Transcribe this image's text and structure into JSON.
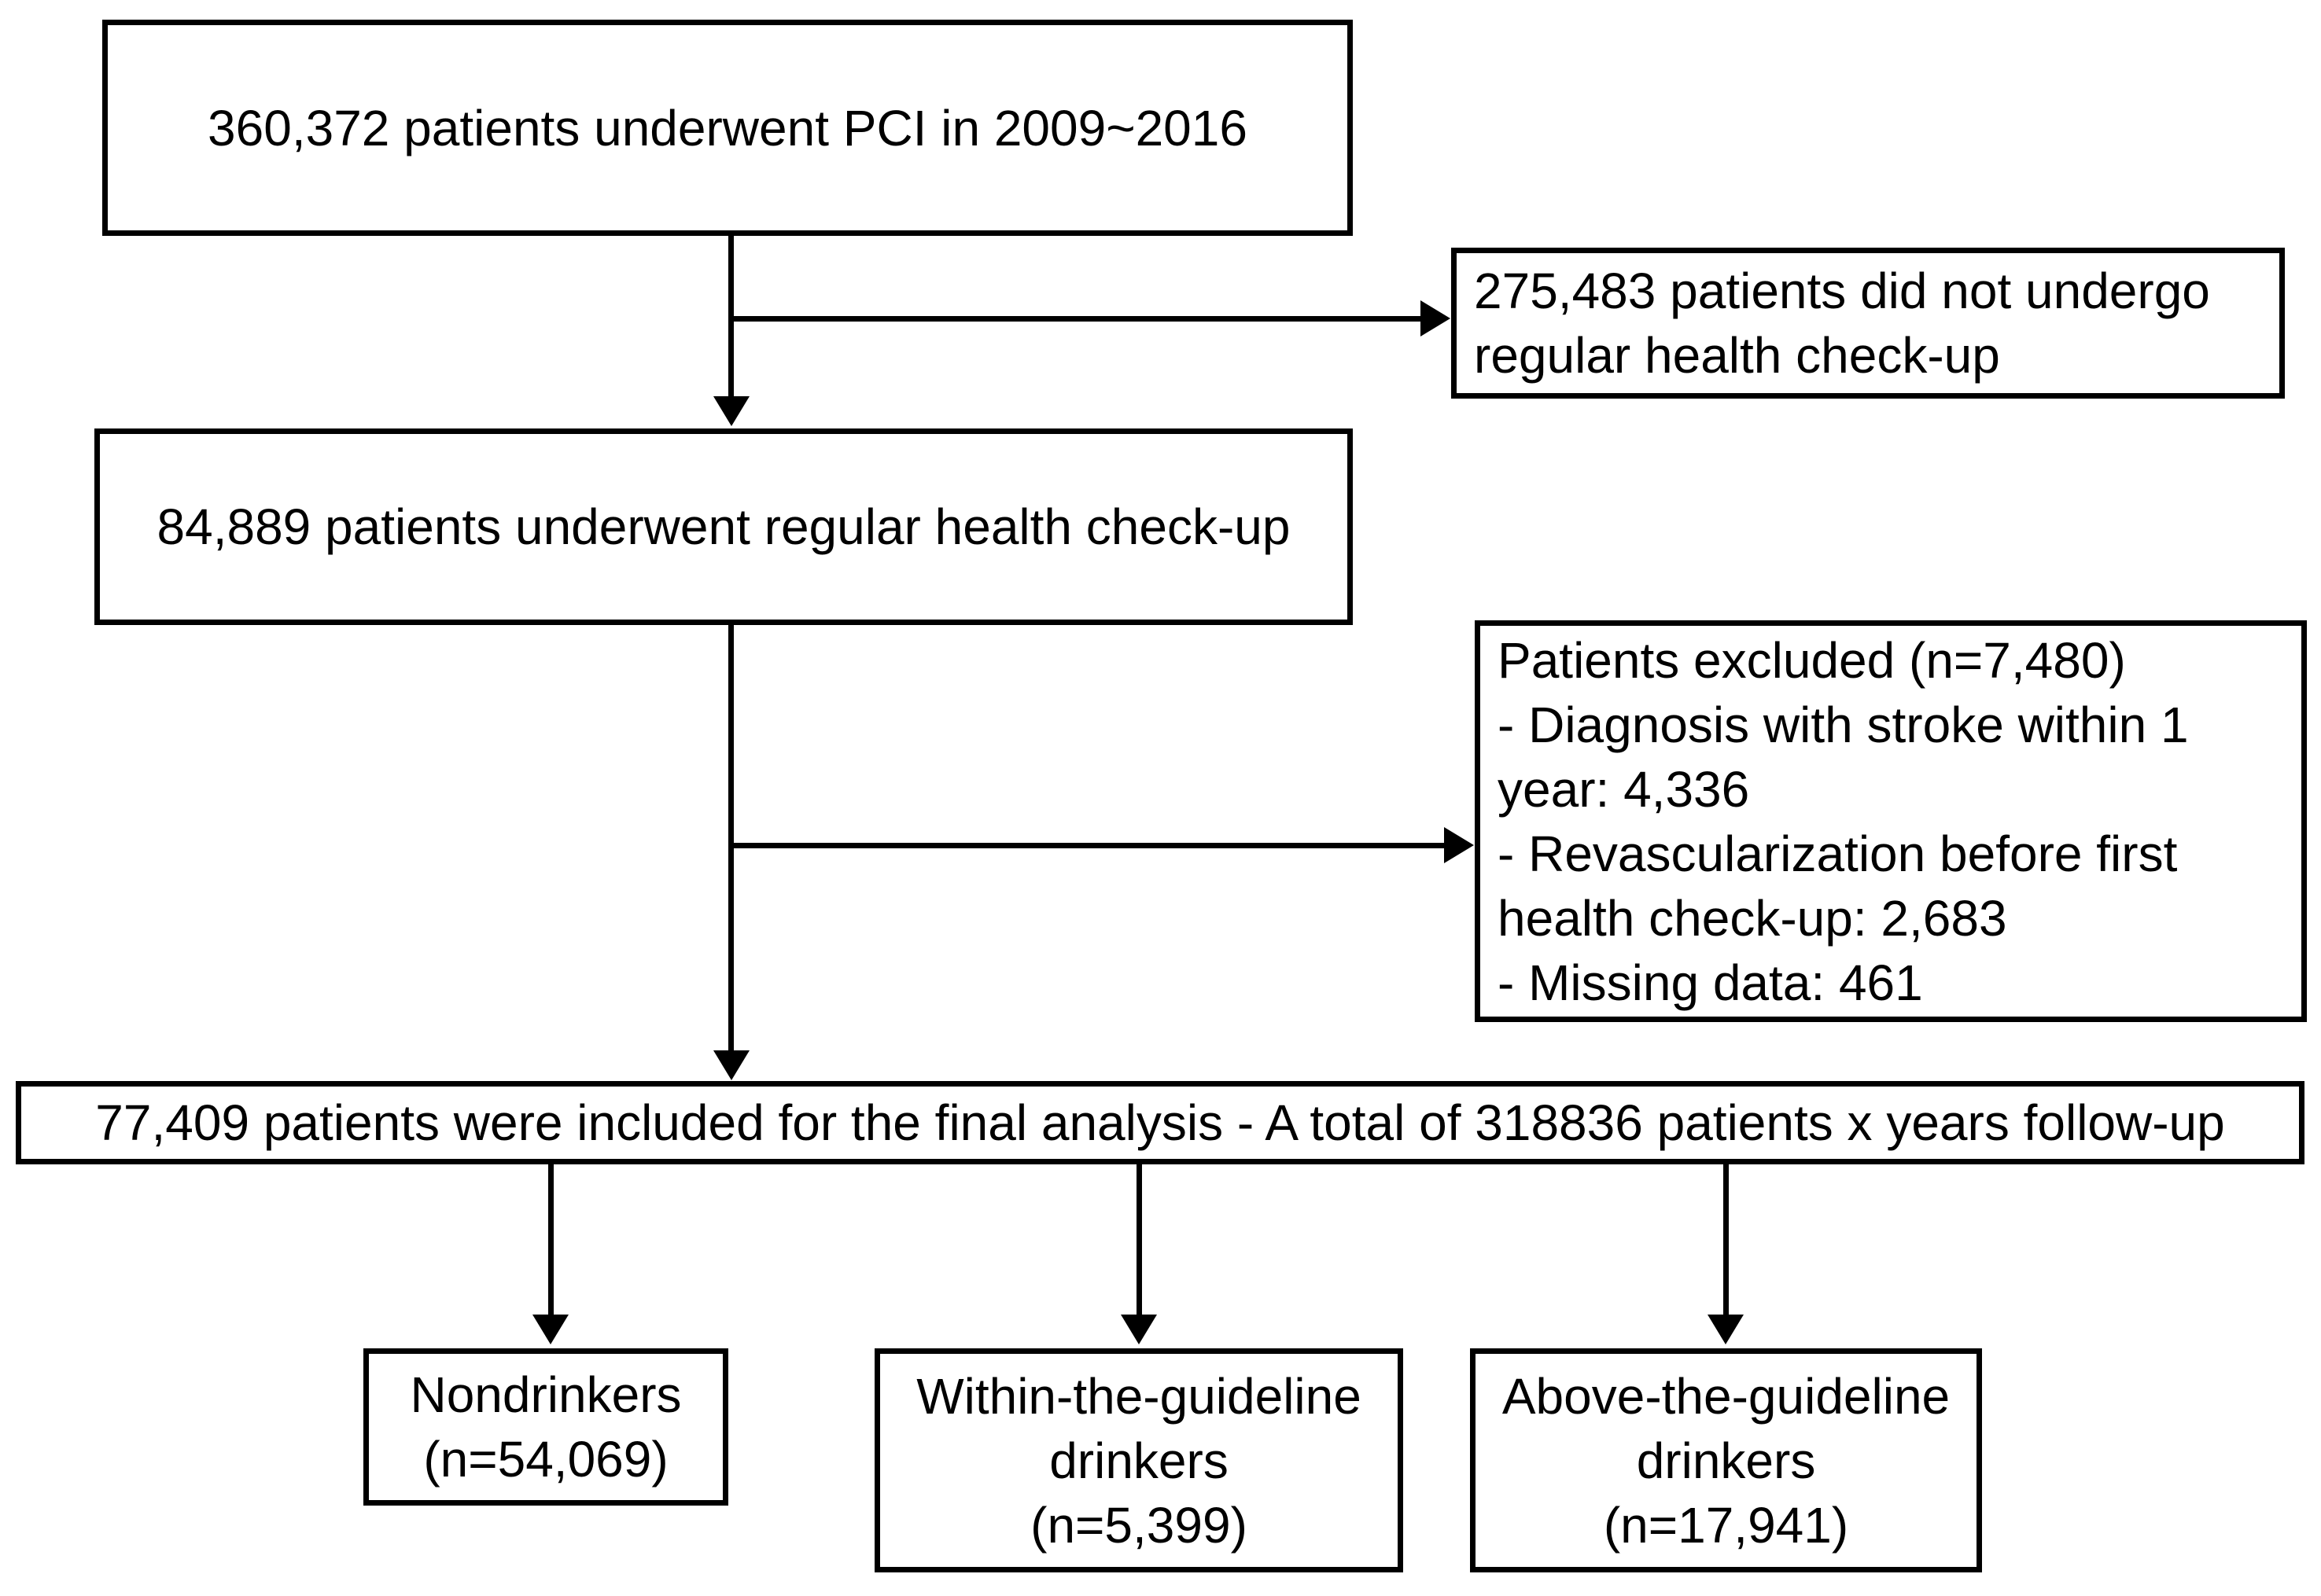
{
  "colors": {
    "ink": "#000000",
    "background": "#ffffff"
  },
  "boxes": {
    "pci": {
      "text": "360,372 patients underwent PCI in 2009~2016"
    },
    "no_checkup": {
      "text": "275,483 patients did not undergo regular health check-up"
    },
    "checkup": {
      "text": "84,889 patients underwent regular health check-up"
    },
    "excluded": {
      "title": "Patients excluded (n=7,480)",
      "items": [
        "- Diagnosis with stroke within 1 year: 4,336",
        "- Revascularization before first health check-up: 2,683",
        "- Missing data: 461"
      ]
    },
    "final": {
      "text": "77,409 patients were included for the final analysis - A total of 318836 patients x years follow-up"
    },
    "nondrinkers": {
      "lines": [
        "Nondrinkers",
        "(n=54,069)"
      ]
    },
    "within_guideline": {
      "lines": [
        "Within-the-guideline",
        "drinkers",
        "(n=5,399)"
      ]
    },
    "above_guideline": {
      "lines": [
        "Above-the-guideline",
        "drinkers",
        "(n=17,941)"
      ]
    }
  }
}
